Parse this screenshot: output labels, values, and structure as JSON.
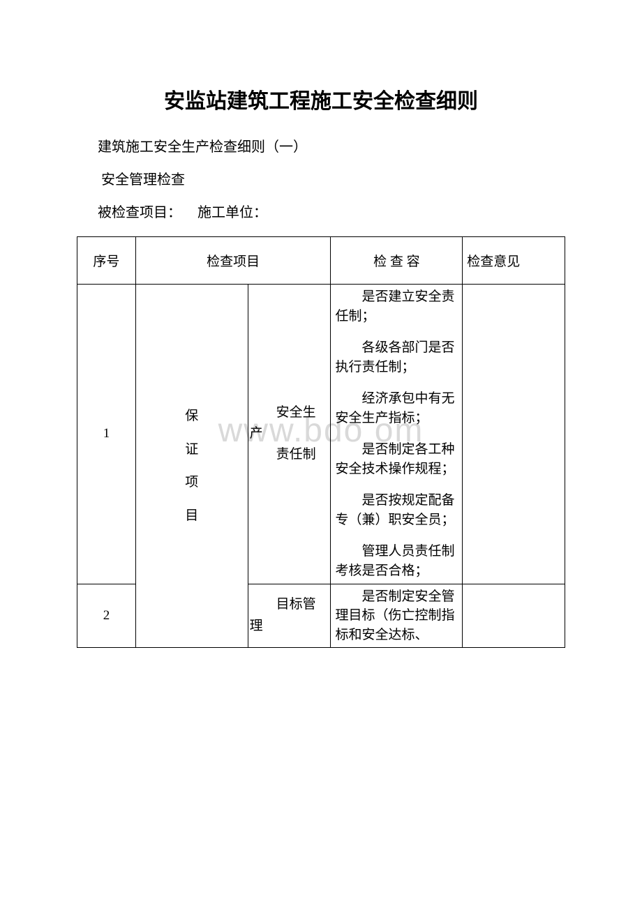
{
  "watermark": "www.bdo   om",
  "doc": {
    "title": "安监站建筑工程施工安全检查细则",
    "subtitle": "建筑施工安全生产检查细则（一）",
    "section": "安全管理检查",
    "inspected_project_label": "被检查项目：",
    "construction_unit_label": "施工单位："
  },
  "table": {
    "headers": {
      "seq": "序号",
      "item": "检查项目",
      "content": "检 查 容",
      "opinion": "检查意见"
    },
    "rows": [
      {
        "seq": "1",
        "item": "保\n证\n项\n目",
        "sub_item": "安全生产\n责任制",
        "sub_item_line1": "　　安全生",
        "sub_item_line2": "产",
        "sub_item_line3": "　　责任制",
        "contents": [
          "是否建立安全责任制；",
          "各级各部门是否执行责任制；",
          "经济承包中有无安全生产指标；",
          "是否制定各工种安全技术操作规程；",
          "是否按规定配备专（兼）职安全员；",
          "管理人员责任制考核是否合格；"
        ],
        "opinion": ""
      },
      {
        "seq": "2",
        "item": "",
        "sub_item_line1": "　　目标管",
        "sub_item_line2": "理",
        "contents_2": "是否制定安全管理目标（伤亡控制指标和安全达标、",
        "opinion": ""
      }
    ]
  },
  "style": {
    "background_color": "#ffffff",
    "text_color": "#000000",
    "border_color": "#000000",
    "watermark_color": "#d9d9d9",
    "title_fontsize": 30,
    "body_fontsize": 20,
    "table_fontsize": 19,
    "col_widths": [
      "12%",
      "23%",
      "17%",
      "27%",
      "21%"
    ]
  }
}
